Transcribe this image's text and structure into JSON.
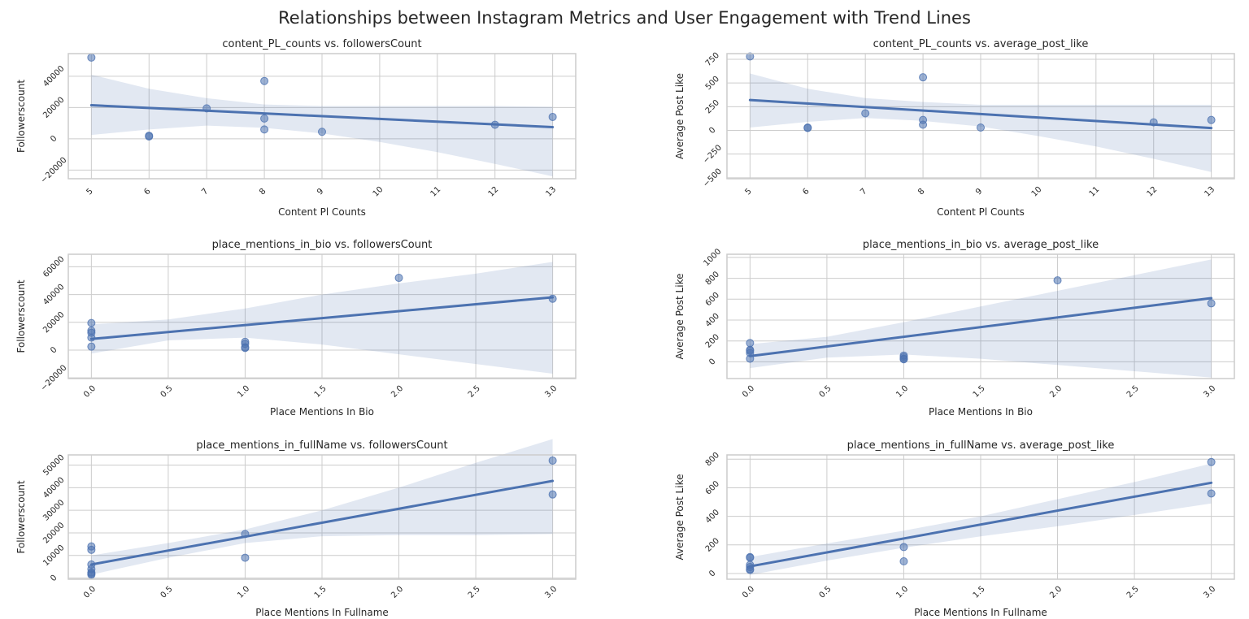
{
  "figure": {
    "title": "Relationships between Instagram Metrics and User Engagement with Trend Lines"
  },
  "style": {
    "point_color": "#4c72b0",
    "line_color": "#4c72b0",
    "band_color": "#4c72b0",
    "grid_color": "#cccccc",
    "frame_color": "#cccccc"
  },
  "chart_data": [
    {
      "type": "scatter",
      "title": "content_PL_counts vs. followersCount",
      "xlabel": "Content Pl Counts",
      "ylabel": "Followerscount",
      "grid": true,
      "xlim": [
        4.6,
        13.4
      ],
      "ylim": [
        -25500,
        54500
      ],
      "xticks": [
        5,
        6,
        7,
        8,
        9,
        10,
        11,
        12,
        13
      ],
      "xtick_labels": [
        "5",
        "6",
        "7",
        "8",
        "9",
        "10",
        "11",
        "12",
        "13"
      ],
      "yticks": [
        -20000,
        0,
        20000,
        40000
      ],
      "ytick_labels": [
        "−20000",
        "0",
        "20000",
        "40000"
      ],
      "points": [
        {
          "x": 5,
          "y": 52000
        },
        {
          "x": 6,
          "y": 2000
        },
        {
          "x": 6,
          "y": 1500
        },
        {
          "x": 7,
          "y": 19500
        },
        {
          "x": 8,
          "y": 37000
        },
        {
          "x": 8,
          "y": 13000
        },
        {
          "x": 8,
          "y": 6000
        },
        {
          "x": 9,
          "y": 4500
        },
        {
          "x": 12,
          "y": 9000
        },
        {
          "x": 13,
          "y": 14000
        }
      ],
      "trend": [
        {
          "x": 5,
          "y": 21500
        },
        {
          "x": 13,
          "y": 7500
        }
      ],
      "band": {
        "x": [
          5,
          6,
          7,
          8,
          9,
          10,
          11,
          12,
          13
        ],
        "lower": [
          2500,
          6000,
          8500,
          7000,
          3500,
          -2000,
          -8500,
          -16000,
          -24000
        ],
        "upper": [
          41000,
          32000,
          26000,
          22000,
          21000,
          21000,
          21000,
          21000,
          20500
        ]
      }
    },
    {
      "type": "scatter",
      "title": "content_PL_counts vs. average_post_like",
      "xlabel": "Content Pl Counts",
      "ylabel": "Average Post Like",
      "grid": true,
      "xlim": [
        4.6,
        13.4
      ],
      "ylim": [
        -510,
        810
      ],
      "xticks": [
        5,
        6,
        7,
        8,
        9,
        10,
        11,
        12,
        13
      ],
      "xtick_labels": [
        "5",
        "6",
        "7",
        "8",
        "9",
        "10",
        "11",
        "12",
        "13"
      ],
      "yticks": [
        -500,
        -250,
        0,
        250,
        500,
        750
      ],
      "ytick_labels": [
        "−500",
        "−250",
        "0",
        "250",
        "500",
        "750"
      ],
      "points": [
        {
          "x": 5,
          "y": 780
        },
        {
          "x": 6,
          "y": 30
        },
        {
          "x": 6,
          "y": 25
        },
        {
          "x": 7,
          "y": 180
        },
        {
          "x": 8,
          "y": 560
        },
        {
          "x": 8,
          "y": 110
        },
        {
          "x": 8,
          "y": 60
        },
        {
          "x": 9,
          "y": 30
        },
        {
          "x": 12,
          "y": 85
        },
        {
          "x": 13,
          "y": 110
        }
      ],
      "trend": [
        {
          "x": 5,
          "y": 320
        },
        {
          "x": 13,
          "y": 25
        }
      ],
      "band": {
        "x": [
          5,
          6,
          7,
          8,
          9,
          10,
          11,
          12,
          13
        ],
        "lower": [
          30,
          90,
          130,
          100,
          40,
          -60,
          -170,
          -300,
          -440
        ],
        "upper": [
          600,
          440,
          340,
          300,
          270,
          270,
          270,
          270,
          270
        ]
      }
    },
    {
      "type": "scatter",
      "title": "place_mentions_in_bio vs. followersCount",
      "xlabel": "Place Mentions In Bio",
      "ylabel": "Followerscount",
      "grid": true,
      "xlim": [
        -0.15,
        3.15
      ],
      "ylim": [
        -20500,
        69000
      ],
      "xticks": [
        0.0,
        0.5,
        1.0,
        1.5,
        2.0,
        2.5,
        3.0
      ],
      "xtick_labels": [
        "0.0",
        "0.5",
        "1.0",
        "1.5",
        "2.0",
        "2.5",
        "3.0"
      ],
      "yticks": [
        -20000,
        0,
        20000,
        40000,
        60000
      ],
      "ytick_labels": [
        "−20000",
        "0",
        "20000",
        "40000",
        "60000"
      ],
      "points": [
        {
          "x": 0,
          "y": 19500
        },
        {
          "x": 0,
          "y": 14000
        },
        {
          "x": 0,
          "y": 12500
        },
        {
          "x": 0,
          "y": 9000
        },
        {
          "x": 0,
          "y": 2500
        },
        {
          "x": 1,
          "y": 6000
        },
        {
          "x": 1,
          "y": 4500
        },
        {
          "x": 1,
          "y": 2000
        },
        {
          "x": 1,
          "y": 1500
        },
        {
          "x": 2,
          "y": 52000
        },
        {
          "x": 3,
          "y": 37000
        }
      ],
      "trend": [
        {
          "x": 0,
          "y": 8000
        },
        {
          "x": 3,
          "y": 38000
        }
      ],
      "band": {
        "x": [
          0,
          0.5,
          1.0,
          1.5,
          2.0,
          2.5,
          3.0
        ],
        "lower": [
          -2500,
          7000,
          9000,
          4000,
          -3000,
          -10000,
          -17000
        ],
        "upper": [
          18500,
          22000,
          30000,
          40000,
          48000,
          55000,
          63500
        ]
      }
    },
    {
      "type": "scatter",
      "title": "place_mentions_in_bio vs. average_post_like",
      "xlabel": "Place Mentions In Bio",
      "ylabel": "Average Post Like",
      "grid": true,
      "xlim": [
        -0.15,
        3.15
      ],
      "ylim": [
        -160,
        1030
      ],
      "xticks": [
        0.0,
        0.5,
        1.0,
        1.5,
        2.0,
        2.5,
        3.0
      ],
      "xtick_labels": [
        "0.0",
        "0.5",
        "1.0",
        "1.5",
        "2.0",
        "2.5",
        "3.0"
      ],
      "yticks": [
        0,
        200,
        400,
        600,
        800,
        1000
      ],
      "ytick_labels": [
        "0",
        "200",
        "400",
        "600",
        "800",
        "1000"
      ],
      "points": [
        {
          "x": 0,
          "y": 180
        },
        {
          "x": 0,
          "y": 115
        },
        {
          "x": 0,
          "y": 105
        },
        {
          "x": 0,
          "y": 85
        },
        {
          "x": 0,
          "y": 30
        },
        {
          "x": 1,
          "y": 60
        },
        {
          "x": 1,
          "y": 45
        },
        {
          "x": 1,
          "y": 30
        },
        {
          "x": 1,
          "y": 25
        },
        {
          "x": 2,
          "y": 780
        },
        {
          "x": 3,
          "y": 560
        }
      ],
      "trend": [
        {
          "x": 0,
          "y": 55
        },
        {
          "x": 3,
          "y": 610
        }
      ],
      "band": {
        "x": [
          0,
          0.5,
          1.0,
          1.5,
          2.0,
          2.5,
          3.0
        ],
        "lower": [
          -60,
          40,
          70,
          30,
          -30,
          -90,
          -150
        ],
        "upper": [
          170,
          240,
          380,
          530,
          680,
          830,
          980
        ]
      }
    },
    {
      "type": "scatter",
      "title": "place_mentions_in_fullName vs. followersCount",
      "xlabel": "Place Mentions In Fullname",
      "ylabel": "Followerscount",
      "grid": true,
      "xlim": [
        -0.15,
        3.15
      ],
      "ylim": [
        -500,
        54500
      ],
      "xticks": [
        0.0,
        0.5,
        1.0,
        1.5,
        2.0,
        2.5,
        3.0
      ],
      "xtick_labels": [
        "0.0",
        "0.5",
        "1.0",
        "1.5",
        "2.0",
        "2.5",
        "3.0"
      ],
      "yticks": [
        0,
        10000,
        20000,
        30000,
        40000,
        50000
      ],
      "ytick_labels": [
        "0",
        "10000",
        "20000",
        "30000",
        "40000",
        "50000"
      ],
      "points": [
        {
          "x": 0,
          "y": 14000
        },
        {
          "x": 0,
          "y": 12500
        },
        {
          "x": 0,
          "y": 6000
        },
        {
          "x": 0,
          "y": 4000
        },
        {
          "x": 0,
          "y": 2500
        },
        {
          "x": 0,
          "y": 2000
        },
        {
          "x": 0,
          "y": 1500
        },
        {
          "x": 1,
          "y": 19500
        },
        {
          "x": 1,
          "y": 9000
        },
        {
          "x": 3,
          "y": 52000
        },
        {
          "x": 3,
          "y": 37000
        }
      ],
      "trend": [
        {
          "x": 0,
          "y": 6000
        },
        {
          "x": 3,
          "y": 43000
        }
      ],
      "band": {
        "x": [
          0,
          0.5,
          1.0,
          1.5,
          2.0,
          2.5,
          3.0
        ],
        "lower": [
          1500,
          9000,
          15500,
          18500,
          19000,
          19000,
          19500
        ],
        "upper": [
          10000,
          15500,
          21500,
          30000,
          40000,
          51000,
          61500
        ]
      }
    },
    {
      "type": "scatter",
      "title": "place_mentions_in_fullName vs. average_post_like",
      "xlabel": "Place Mentions In Fullname",
      "ylabel": "Average Post Like",
      "grid": true,
      "xlim": [
        -0.15,
        3.15
      ],
      "ylim": [
        -40,
        830
      ],
      "xticks": [
        0.0,
        0.5,
        1.0,
        1.5,
        2.0,
        2.5,
        3.0
      ],
      "xtick_labels": [
        "0.0",
        "0.5",
        "1.0",
        "1.5",
        "2.0",
        "2.5",
        "3.0"
      ],
      "yticks": [
        0,
        200,
        400,
        600,
        800
      ],
      "ytick_labels": [
        "0",
        "200",
        "400",
        "600",
        "800"
      ],
      "points": [
        {
          "x": 0,
          "y": 115
        },
        {
          "x": 0,
          "y": 110
        },
        {
          "x": 0,
          "y": 60
        },
        {
          "x": 0,
          "y": 45
        },
        {
          "x": 0,
          "y": 30
        },
        {
          "x": 0,
          "y": 25
        },
        {
          "x": 1,
          "y": 185
        },
        {
          "x": 1,
          "y": 85
        },
        {
          "x": 3,
          "y": 780
        },
        {
          "x": 3,
          "y": 560
        }
      ],
      "trend": [
        {
          "x": 0,
          "y": 50
        },
        {
          "x": 3,
          "y": 635
        }
      ],
      "band": {
        "x": [
          0,
          0.5,
          1.0,
          1.5,
          2.0,
          2.5,
          3.0
        ],
        "lower": [
          -10,
          90,
          180,
          260,
          330,
          410,
          490
        ],
        "upper": [
          115,
          210,
          300,
          400,
          520,
          640,
          770
        ]
      }
    }
  ]
}
